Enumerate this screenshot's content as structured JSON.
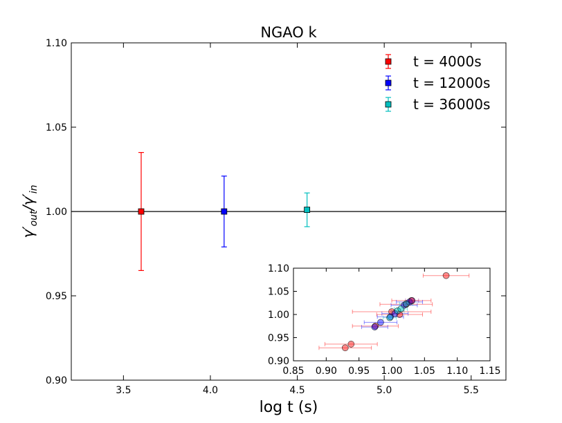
{
  "chart_data": [
    {
      "type": "scatter",
      "title": "NGAO k",
      "xlabel": "log t (s)",
      "ylabel": "γ′out/γ′in",
      "xlim": [
        3.2,
        5.7
      ],
      "ylim": [
        0.9,
        1.1
      ],
      "xticks": [
        "3.5",
        "4.0",
        "4.5",
        "5.0",
        "5.5"
      ],
      "yticks": [
        "0.90",
        "0.95",
        "1.00",
        "1.05",
        "1.10"
      ],
      "reference_line_y": 1.0,
      "legend_position": "top-right",
      "series": [
        {
          "name": "t = 4000s",
          "color": "#ff0000",
          "x": 3.602,
          "y": 1.0,
          "yerr": 0.035
        },
        {
          "name": "t = 12000s",
          "color": "#0000ff",
          "x": 4.079,
          "y": 1.0,
          "yerr": 0.021
        },
        {
          "name": "t = 36000s",
          "color": "#00bfbf",
          "x": 4.556,
          "y": 1.001,
          "yerr": 0.01
        }
      ]
    },
    {
      "type": "scatter",
      "title": "",
      "xlim": [
        0.85,
        1.15
      ],
      "ylim": [
        0.9,
        1.1
      ],
      "xticks": [
        "0.85",
        "0.90",
        "0.95",
        "1.00",
        "1.05",
        "1.10",
        "1.15"
      ],
      "yticks": [
        "0.90",
        "0.95",
        "1.00",
        "1.05",
        "1.10"
      ],
      "series": [
        {
          "color": "#ff0000",
          "points": [
            {
              "x": 1.083,
              "y": 1.084,
              "xerr": 0.035
            },
            {
              "x": 0.938,
              "y": 0.936,
              "xerr": 0.04
            },
            {
              "x": 0.929,
              "y": 0.928,
              "xerr": 0.04
            },
            {
              "x": 1.0,
              "y": 1.006,
              "xerr": 0.06
            },
            {
              "x": 1.022,
              "y": 1.022,
              "xerr": 0.04
            },
            {
              "x": 1.03,
              "y": 1.03,
              "xerr": 0.03
            },
            {
              "x": 0.975,
              "y": 0.975,
              "xerr": 0.035
            },
            {
              "x": 1.012,
              "y": 1.0,
              "xerr": 0.035
            }
          ]
        },
        {
          "color": "#0000ff",
          "points": [
            {
              "x": 0.974,
              "y": 0.973,
              "xerr": 0.02
            },
            {
              "x": 0.983,
              "y": 0.983,
              "xerr": 0.025
            },
            {
              "x": 0.998,
              "y": 0.995,
              "xerr": 0.02
            },
            {
              "x": 1.005,
              "y": 1.002,
              "xerr": 0.02
            },
            {
              "x": 1.019,
              "y": 1.02,
              "xerr": 0.02
            },
            {
              "x": 1.027,
              "y": 1.027,
              "xerr": 0.02
            }
          ]
        },
        {
          "color": "#00bfbf",
          "points": [
            {
              "x": 0.997,
              "y": 0.993,
              "xerr": 0.01
            },
            {
              "x": 1.009,
              "y": 1.008,
              "xerr": 0.01
            },
            {
              "x": 1.014,
              "y": 1.012,
              "xerr": 0.01
            },
            {
              "x": 1.022,
              "y": 1.023,
              "xerr": 0.01
            }
          ]
        },
        {
          "color": "#800080",
          "points": [
            {
              "x": 1.031,
              "y": 1.03,
              "xerr": 0.01
            }
          ]
        }
      ]
    }
  ]
}
